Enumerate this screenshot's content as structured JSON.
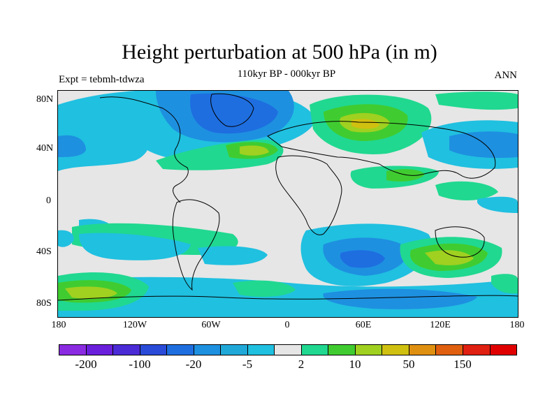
{
  "title": "Height perturbation at 500 hPa (in m)",
  "subtitle": "110kyr BP - 000kyr BP",
  "left_label": "Expt = tebmh-tdwza",
  "right_label": "ANN",
  "y_ticks": [
    "80N",
    "40N",
    "0",
    "40S",
    "80S"
  ],
  "x_ticks": [
    "180",
    "120W",
    "60W",
    "0",
    "60E",
    "120E",
    "180"
  ],
  "colorbar": {
    "colors": [
      "#8a2be2",
      "#6a1fdc",
      "#4b2bd6",
      "#2a4ad8",
      "#1e6ee0",
      "#1e90e0",
      "#20a8d8",
      "#20c0e0",
      "#e6e6e6",
      "#20d890",
      "#40cc30",
      "#a0d020",
      "#d0c010",
      "#e09010",
      "#e06010",
      "#e02010",
      "#e00000"
    ],
    "labels": [
      "-200",
      "-100",
      "-20",
      "-5",
      "2",
      "10",
      "50",
      "150"
    ]
  },
  "map_colors": {
    "background": "#e6e6e6",
    "neg_light": "#20c0e0",
    "neg_mid": "#1e90e0",
    "neg_strong": "#1e6ee0",
    "pos_light": "#20d890",
    "pos_mid": "#40cc30",
    "pos_strong": "#a0d020",
    "pos_peak": "#d0c010",
    "pos_max": "#e09010"
  }
}
